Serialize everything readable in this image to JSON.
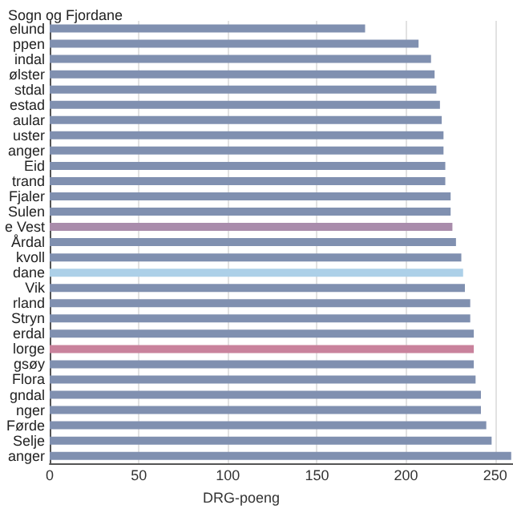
{
  "chart_data": {
    "type": "bar",
    "orientation": "horizontal",
    "title": "Sogn og Fjordane",
    "xlabel": "DRG-poeng",
    "categories": [
      "elund",
      "ppen",
      "indal",
      "ølster",
      "stdal",
      "estad",
      "aular",
      "uster",
      "anger",
      "Eid",
      "trand",
      "Fjaler",
      "Sulen",
      "e Vest",
      "Årdal",
      "kvoll",
      "dane",
      "Vik",
      "rland",
      "Stryn",
      "erdal",
      "lorge",
      "gsøy",
      "Flora",
      "gndal",
      "nger",
      "Førde",
      "Selje",
      "anger"
    ],
    "values": [
      177,
      207,
      214,
      216,
      217,
      219,
      220,
      221,
      221,
      222,
      222,
      225,
      225,
      226,
      228,
      231,
      232,
      233,
      236,
      236,
      238,
      238,
      238,
      239,
      242,
      242,
      245,
      248,
      259
    ],
    "colors": [
      "#8090b0",
      "#8090b0",
      "#8090b0",
      "#8090b0",
      "#8090b0",
      "#8090b0",
      "#8090b0",
      "#8090b0",
      "#8090b0",
      "#8090b0",
      "#8090b0",
      "#8090b0",
      "#8090b0",
      "#a98cab",
      "#8090b0",
      "#8090b0",
      "#acd0e8",
      "#8090b0",
      "#8090b0",
      "#8090b0",
      "#8090b0",
      "#c9829c",
      "#8090b0",
      "#8090b0",
      "#8090b0",
      "#8090b0",
      "#8090b0",
      "#8090b0",
      "#8090b0"
    ],
    "xlim": [
      0,
      260
    ],
    "xticks": [
      0,
      50,
      100,
      150,
      200,
      250
    ],
    "grid": "x"
  }
}
